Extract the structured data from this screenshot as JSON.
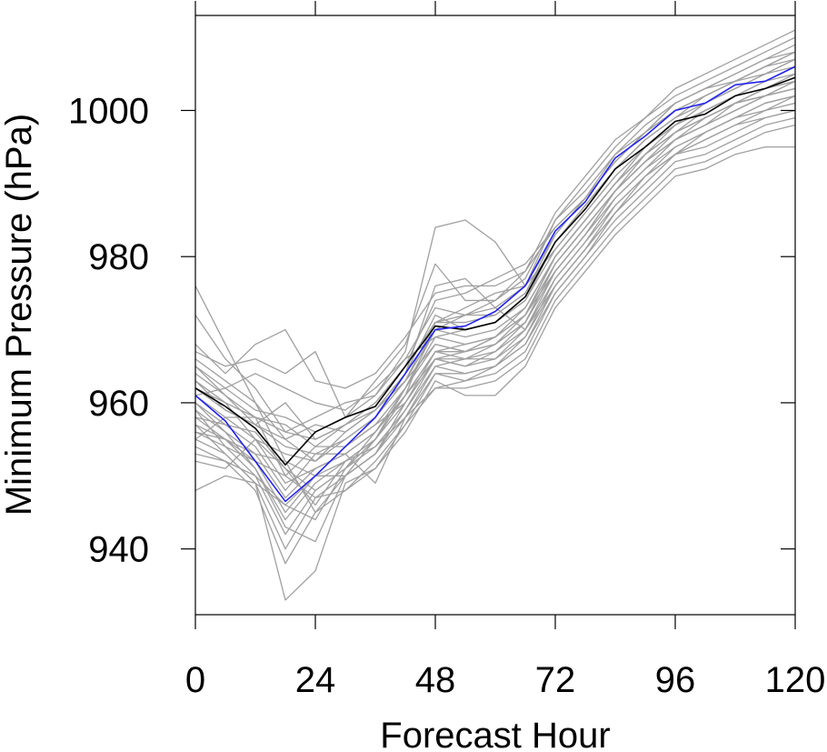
{
  "chart_data": {
    "type": "line",
    "title": "",
    "xlabel": "Forecast Hour",
    "ylabel": "Minimum Pressure (hPa)",
    "xlim": [
      0,
      120
    ],
    "ylim": [
      931,
      1013
    ],
    "xticks": [
      0,
      24,
      48,
      72,
      96,
      120
    ],
    "xtick_labels": [
      "0",
      "24",
      "48",
      "72",
      "96",
      "120"
    ],
    "yticks": [
      940,
      960,
      980,
      1000
    ],
    "ytick_labels": [
      "940",
      "960",
      "980",
      "1000"
    ],
    "grid": false,
    "legend": "none",
    "x": [
      0,
      6,
      12,
      18,
      24,
      30,
      36,
      42,
      48,
      54,
      60,
      66,
      72,
      78,
      84,
      90,
      96,
      102,
      108,
      114,
      120
    ],
    "series": [
      {
        "role": "ensemble",
        "color": "#a0a0a0",
        "values": [
          976,
          968,
          960,
          952,
          945,
          950,
          955,
          962,
          970,
          972,
          974,
          978,
          984,
          988,
          993,
          997,
          1001,
          1003,
          1005,
          1007,
          1009
        ]
      },
      {
        "role": "ensemble",
        "color": "#a0a0a0",
        "values": [
          972,
          966,
          962,
          956,
          958,
          960,
          961,
          967,
          984,
          985,
          982,
          976,
          985,
          990,
          995,
          999,
          1003,
          1005,
          1007,
          1009,
          1011
        ]
      },
      {
        "role": "ensemble",
        "color": "#a0a0a0",
        "values": [
          968,
          964,
          968,
          970,
          963,
          962,
          964,
          969,
          975,
          976,
          976,
          978,
          986,
          991,
          996,
          999,
          1002,
          1004,
          1006,
          1008,
          1010
        ]
      },
      {
        "role": "ensemble",
        "color": "#a0a0a0",
        "values": [
          967,
          965,
          966,
          964,
          967,
          958,
          963,
          968,
          979,
          974,
          974,
          977,
          985,
          989,
          994,
          998,
          1001,
          1003,
          1005,
          1007,
          1008
        ]
      },
      {
        "role": "ensemble",
        "color": "#a0a0a0",
        "values": [
          965,
          962,
          964,
          962,
          960,
          959,
          962,
          966,
          973,
          972,
          972,
          975,
          983,
          988,
          993,
          997,
          1000,
          1002,
          1004,
          1006,
          1008
        ]
      },
      {
        "role": "ensemble",
        "color": "#a0a0a0",
        "values": [
          964,
          961,
          958,
          957,
          954,
          957,
          960,
          965,
          971,
          971,
          972,
          975,
          982,
          987,
          992,
          996,
          999,
          1001,
          1003,
          1005,
          1007
        ]
      },
      {
        "role": "ensemble",
        "color": "#a0a0a0",
        "values": [
          963,
          959,
          957,
          960,
          955,
          957,
          959,
          964,
          972,
          970,
          971,
          974,
          981,
          986,
          991,
          995,
          998,
          1001,
          1003,
          1005,
          1006
        ]
      },
      {
        "role": "ensemble",
        "color": "#a0a0a0",
        "values": [
          962,
          960,
          955,
          953,
          952,
          955,
          958,
          963,
          970,
          969,
          970,
          973,
          980,
          985,
          990,
          994,
          998,
          1000,
          1002,
          1004,
          1005
        ]
      },
      {
        "role": "ensemble",
        "color": "#a0a0a0",
        "values": [
          961,
          958,
          958,
          950,
          954,
          954,
          957,
          962,
          969,
          968,
          969,
          972,
          980,
          985,
          990,
          994,
          997,
          999,
          1001,
          1003,
          1004
        ]
      },
      {
        "role": "ensemble",
        "color": "#a0a0a0",
        "values": [
          960,
          957,
          954,
          948,
          953,
          953,
          956,
          962,
          968,
          967,
          968,
          971,
          979,
          984,
          989,
          993,
          996,
          999,
          1001,
          1002,
          1003
        ]
      },
      {
        "role": "ensemble",
        "color": "#a0a0a0",
        "values": [
          959,
          956,
          953,
          947,
          951,
          953,
          956,
          961,
          967,
          966,
          968,
          971,
          978,
          983,
          988,
          992,
          996,
          998,
          1000,
          1002,
          1003
        ]
      },
      {
        "role": "ensemble",
        "color": "#a0a0a0",
        "values": [
          958,
          955,
          952,
          945,
          950,
          952,
          955,
          960,
          966,
          966,
          967,
          970,
          977,
          982,
          988,
          992,
          995,
          997,
          999,
          1001,
          1002
        ]
      },
      {
        "role": "ensemble",
        "color": "#a0a0a0",
        "values": [
          957,
          955,
          951,
          944,
          949,
          952,
          954,
          959,
          966,
          965,
          966,
          969,
          977,
          982,
          987,
          991,
          994,
          996,
          998,
          1000,
          1001
        ]
      },
      {
        "role": "ensemble",
        "color": "#a0a0a0",
        "values": [
          956,
          954,
          950,
          942,
          948,
          951,
          954,
          958,
          965,
          964,
          965,
          968,
          976,
          981,
          986,
          990,
          994,
          995,
          997,
          999,
          1000
        ]
      },
      {
        "role": "ensemble",
        "color": "#a0a0a0",
        "values": [
          955,
          953,
          949,
          940,
          947,
          950,
          953,
          958,
          964,
          963,
          964,
          967,
          975,
          980,
          985,
          989,
          993,
          994,
          996,
          998,
          999
        ]
      },
      {
        "role": "ensemble",
        "color": "#a0a0a0",
        "values": [
          953,
          952,
          948,
          938,
          945,
          948,
          952,
          957,
          962,
          962,
          963,
          966,
          974,
          979,
          984,
          988,
          992,
          993,
          995,
          997,
          998
        ]
      },
      {
        "role": "ensemble",
        "color": "#a0a0a0",
        "values": [
          948,
          950,
          949,
          933,
          937,
          949,
          951,
          956,
          963,
          961,
          961,
          965,
          973,
          978,
          983,
          987,
          991,
          992,
          994,
          995,
          995
        ]
      },
      {
        "role": "ensemble",
        "color": "#a0a0a0",
        "values": [
          952,
          951,
          955,
          949,
          951,
          953,
          949,
          958,
          962,
          963,
          965,
          968,
          975,
          980,
          986,
          990,
          994,
          996,
          998,
          999,
          1000
        ]
      },
      {
        "role": "ensemble",
        "color": "#a0a0a0",
        "values": [
          966,
          963,
          960,
          955,
          957,
          956,
          959,
          964,
          976,
          977,
          973,
          970,
          978,
          983,
          989,
          993,
          997,
          999,
          1001,
          1003,
          1005
        ]
      },
      {
        "role": "ensemble",
        "color": "#a0a0a0",
        "values": [
          960,
          956,
          951,
          943,
          941,
          950,
          953,
          960,
          967,
          968,
          969,
          972,
          979,
          984,
          989,
          994,
          997,
          1000,
          1002,
          1003,
          1004
        ]
      },
      {
        "role": "ensemble",
        "color": "#a0a0a0",
        "values": [
          958,
          957,
          956,
          951,
          948,
          951,
          955,
          961,
          971,
          973,
          975,
          976,
          981,
          986,
          991,
          995,
          998,
          1000,
          1002,
          1004,
          1006
        ]
      },
      {
        "role": "ensemble",
        "color": "#a0a0a0",
        "values": [
          954,
          952,
          950,
          946,
          950,
          950,
          953,
          959,
          965,
          966,
          966,
          970,
          976,
          981,
          987,
          991,
          995,
          997,
          999,
          1000,
          1002
        ]
      },
      {
        "role": "ensemble",
        "color": "#a0a0a0",
        "values": [
          962,
          959,
          957,
          954,
          953,
          955,
          958,
          963,
          968,
          967,
          969,
          973,
          980,
          985,
          990,
          995,
          998,
          1000,
          1002,
          1004,
          1006
        ]
      },
      {
        "role": "ensemble",
        "color": "#a0a0a0",
        "values": [
          957,
          953,
          949,
          946,
          944,
          951,
          956,
          961,
          966,
          965,
          967,
          971,
          979,
          984,
          989,
          993,
          996,
          998,
          1001,
          1002,
          1003
        ]
      },
      {
        "role": "ensemble",
        "color": "#a0a0a0",
        "values": [
          963,
          960,
          958,
          956,
          955,
          957,
          960,
          965,
          974,
          975,
          977,
          979,
          984,
          988,
          993,
          997,
          1000,
          1002,
          1004,
          1005,
          1007
        ]
      },
      {
        "role": "ensemble",
        "color": "#a0a0a0",
        "values": [
          959,
          954,
          952,
          950,
          947,
          948,
          951,
          957,
          964,
          964,
          965,
          969,
          976,
          981,
          986,
          991,
          994,
          997,
          999,
          1001,
          1002
        ]
      },
      {
        "role": "ensemble",
        "color": "#a0a0a0",
        "values": [
          961,
          962,
          959,
          958,
          956,
          958,
          961,
          966,
          969,
          970,
          971,
          974,
          982,
          987,
          992,
          996,
          999,
          1002,
          1004,
          1006,
          1007
        ]
      },
      {
        "role": "ensemble",
        "color": "#a0a0a0",
        "values": [
          956,
          955,
          953,
          952,
          950,
          954,
          957,
          960,
          966,
          967,
          968,
          972,
          978,
          983,
          989,
          993,
          996,
          998,
          1000,
          1002,
          1004
        ]
      },
      {
        "role": "ensemble",
        "color": "#a0a0a0",
        "values": [
          965,
          961,
          957,
          955,
          952,
          956,
          959,
          963,
          971,
          972,
          973,
          976,
          983,
          988,
          994,
          997,
          1001,
          1003,
          1004,
          1006,
          1008
        ]
      },
      {
        "role": "ensemble",
        "color": "#a0a0a0",
        "values": [
          955,
          958,
          955,
          951,
          946,
          952,
          955,
          961,
          967,
          967,
          969,
          972,
          980,
          985,
          990,
          994,
          997,
          999,
          1001,
          1002,
          1004
        ]
      },
      {
        "role": "mean",
        "color": "#000000",
        "values": [
          962,
          959.5,
          956.5,
          951.5,
          956,
          958,
          959.5,
          965,
          970.5,
          970,
          971,
          974.5,
          982,
          986.5,
          992,
          995,
          998.5,
          999.5,
          1002,
          1003,
          1004.5
        ]
      },
      {
        "role": "highlight",
        "color": "#2222ee",
        "values": [
          961,
          957.5,
          952,
          946.5,
          950,
          954,
          958,
          964,
          970,
          970.5,
          972.5,
          976,
          983.5,
          987.5,
          993.5,
          996.5,
          1000,
          1001,
          1003.5,
          1004,
          1006
        ]
      }
    ]
  }
}
